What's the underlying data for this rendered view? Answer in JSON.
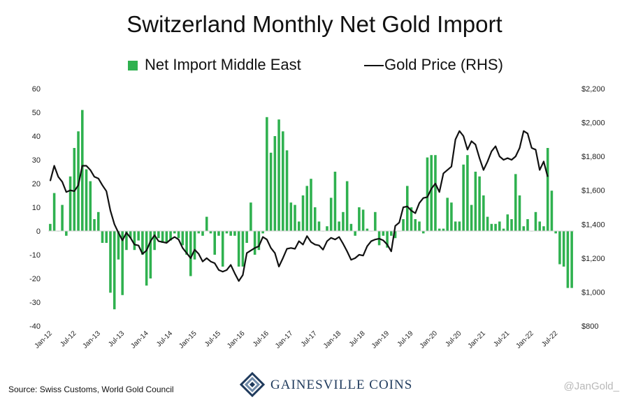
{
  "chart_data": {
    "type": "bar+line",
    "title": "Switzerland Monthly Net Gold Import",
    "legend": [
      "Net Import Middle East",
      "Gold Price (RHS)"
    ],
    "left_axis": {
      "min": -40,
      "max": 60,
      "ticks": [
        "60",
        "50",
        "40",
        "30",
        "20",
        "10",
        "0",
        "-10",
        "-20",
        "-30",
        "-40"
      ]
    },
    "right_axis": {
      "min": 800,
      "max": 2200,
      "ticks": [
        "$2,200",
        "$2,000",
        "$1,800",
        "$1,600",
        "$1,400",
        "$1,200",
        "$1,000",
        "$800"
      ]
    },
    "x_tick_labels": [
      "Jan-12",
      "Jul-12",
      "Jan-13",
      "Jul-13",
      "Jan-14",
      "Jul-14",
      "Jan-15",
      "Jul-15",
      "Jan-16",
      "Jul-16",
      "Jan-17",
      "Jul-17",
      "Jan-18",
      "Jul-18",
      "Jan-19",
      "Jul-19",
      "Jan-20",
      "Jul-20",
      "Jan-21",
      "Jul-21",
      "Jan-22",
      "Jul-22"
    ],
    "series": [
      {
        "name": "Net Import Middle East",
        "type": "bar",
        "color": "#2fb14f",
        "values": [
          3,
          16,
          0,
          11,
          -2,
          23,
          35,
          42,
          51,
          26,
          21,
          5,
          8,
          -5,
          -5,
          -26,
          -33,
          -12,
          -27,
          -8,
          -3,
          -8,
          -4,
          -10,
          -23,
          -20,
          -8,
          -3,
          -5,
          -5,
          -4,
          -1,
          -3,
          -6,
          -10,
          -19,
          -12,
          -1,
          -2,
          6,
          -1,
          -10,
          -2,
          -15,
          -1,
          -2,
          -2,
          -15,
          -15,
          -5,
          12,
          -10,
          -8,
          -1,
          48,
          33,
          40,
          47,
          42,
          34,
          12,
          11,
          4,
          15,
          19,
          22,
          10,
          4,
          0,
          2,
          14,
          25,
          4,
          8,
          21,
          3,
          -2,
          10,
          9,
          1,
          0,
          8,
          -6,
          -2,
          -7,
          -2,
          -3,
          0,
          5,
          19,
          10,
          5,
          4,
          -1,
          31,
          32,
          32,
          1,
          1,
          14,
          12,
          4,
          4,
          28,
          32,
          11,
          25,
          23,
          15,
          6,
          3,
          3,
          4,
          1,
          7,
          5,
          24,
          15,
          2,
          5,
          0,
          8,
          4,
          2,
          35,
          17,
          -1,
          -14,
          -15,
          -24,
          -24
        ]
      },
      {
        "name": "Gold Price (RHS)",
        "type": "line",
        "color": "#111111",
        "values": [
          1655,
          1745,
          1680,
          1650,
          1590,
          1600,
          1595,
          1630,
          1745,
          1745,
          1720,
          1680,
          1670,
          1630,
          1595,
          1480,
          1400,
          1350,
          1305,
          1350,
          1320,
          1280,
          1275,
          1225,
          1245,
          1300,
          1335,
          1300,
          1295,
          1290,
          1310,
          1325,
          1310,
          1260,
          1230,
          1200,
          1250,
          1225,
          1180,
          1200,
          1180,
          1170,
          1130,
          1120,
          1130,
          1160,
          1110,
          1065,
          1100,
          1230,
          1245,
          1260,
          1270,
          1325,
          1310,
          1260,
          1230,
          1150,
          1200,
          1255,
          1260,
          1255,
          1300,
          1280,
          1330,
          1295,
          1280,
          1275,
          1250,
          1300,
          1320,
          1310,
          1325,
          1285,
          1240,
          1190,
          1200,
          1220,
          1215,
          1270,
          1300,
          1310,
          1315,
          1305,
          1280,
          1240,
          1390,
          1410,
          1500,
          1505,
          1480,
          1465,
          1525,
          1555,
          1560,
          1610,
          1640,
          1590,
          1700,
          1720,
          1740,
          1900,
          1950,
          1920,
          1840,
          1890,
          1870,
          1790,
          1720,
          1770,
          1830,
          1860,
          1800,
          1780,
          1790,
          1780,
          1800,
          1850,
          1950,
          1935,
          1850,
          1840,
          1720,
          1770,
          1680
        ]
      }
    ],
    "annotations": []
  },
  "footer": {
    "source": "Source: Swiss Customs, World Gold Council",
    "logo_text": "GAINESVILLE COINS",
    "logo_icon": "gainesville-coins-logo-icon",
    "handle": "@JanGold_"
  }
}
